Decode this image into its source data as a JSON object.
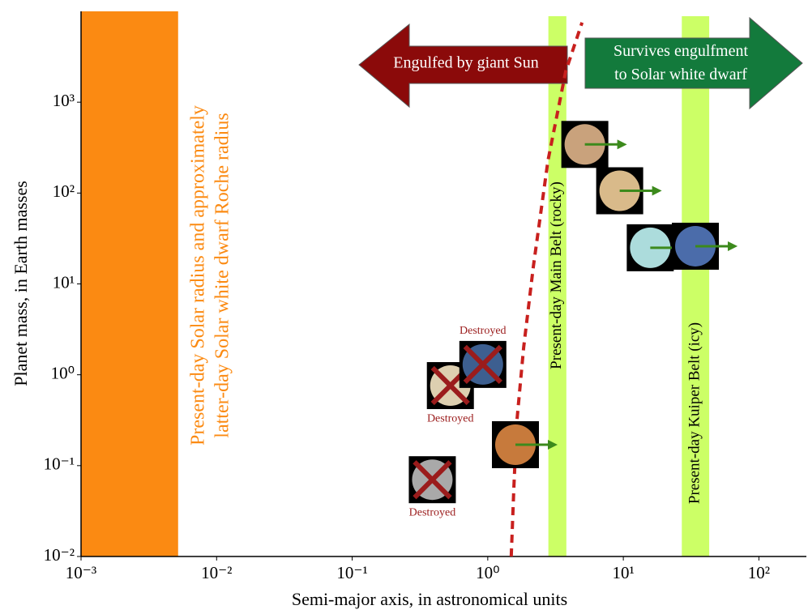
{
  "chart_data": {
    "type": "scatter",
    "xlabel": "Semi-major axis, in astronomical units",
    "ylabel": "Planet mass, in Earth masses",
    "xscale": "log",
    "yscale": "log",
    "xlim": [
      0.001,
      224
    ],
    "ylim": [
      0.01,
      10000
    ],
    "xticks": [
      {
        "value": 0.001,
        "label": "10⁻³"
      },
      {
        "value": 0.01,
        "label": "10⁻²"
      },
      {
        "value": 0.1,
        "label": "10⁻¹"
      },
      {
        "value": 1,
        "label": "10⁰"
      },
      {
        "value": 10,
        "label": "10¹"
      },
      {
        "value": 100,
        "label": "10²"
      }
    ],
    "yticks": [
      {
        "value": 0.01,
        "label": "10⁻²"
      },
      {
        "value": 0.1,
        "label": "10⁻¹"
      },
      {
        "value": 1,
        "label": "10⁰"
      },
      {
        "value": 10,
        "label": "10¹"
      },
      {
        "value": 100,
        "label": "10²"
      },
      {
        "value": 1000,
        "label": "10³"
      }
    ],
    "bands": [
      {
        "x": [
          0.001,
          0.0052
        ],
        "color": "#fb8a12",
        "text_color": "#fb8a12",
        "label_position": "right",
        "label": [
          "Present-day Solar radius and approximately",
          "latter-day Solar white dwarf Roche radius"
        ]
      },
      {
        "x": [
          2.8,
          3.8
        ],
        "color": "#ccff66",
        "text_color": "#000000",
        "label_position": "upper",
        "label": [
          "Present-day Main Belt (rocky)"
        ]
      },
      {
        "x": [
          27,
          43
        ],
        "color": "#ccff66",
        "text_color": "#000000",
        "label_position": "lower",
        "label": [
          "Present-day Kuiper Belt (icy)"
        ]
      }
    ],
    "curve": {
      "color": "#c8201e",
      "x": [
        1.49,
        1.56,
        1.64,
        1.84,
        2.17,
        2.78,
        3.76,
        4.96
      ],
      "y": [
        0.01,
        0.06,
        0.31,
        2.0,
        15.6,
        227,
        2190,
        7530
      ]
    },
    "arrows": [
      {
        "direction": "left",
        "color": "#8b0a0a",
        "text": [
          "Engulfed by giant Sun"
        ]
      },
      {
        "direction": "right",
        "color": "#137a3c",
        "text": [
          "Survives engulfment",
          "to Solar white dwarf"
        ]
      }
    ],
    "planets": [
      {
        "x": 0.39,
        "y": 0.07,
        "color": "#a9a9a9",
        "label": "Destroyed",
        "label_position": "below"
      },
      {
        "x": 0.53,
        "y": 0.76,
        "color": "#ddcfb0",
        "label": "Destroyed",
        "label_position": "below"
      },
      {
        "x": 0.92,
        "y": 1.3,
        "color": "#3d5f90",
        "label": "Destroyed",
        "label_position": "above"
      },
      {
        "x": 1.6,
        "y": 0.17,
        "color": "#c77a3c"
      },
      {
        "x": 5.2,
        "y": 343,
        "color": "#c9a27c"
      },
      {
        "x": 9.4,
        "y": 106,
        "color": "#d9ba8a"
      },
      {
        "x": 15.8,
        "y": 25,
        "color": "#acdcdc"
      },
      {
        "x": 34,
        "y": 26,
        "color": "#4b6caa"
      }
    ],
    "destroyed_color": "#9b1c1c",
    "survivor_arrow_color": "#3c8a1c"
  }
}
